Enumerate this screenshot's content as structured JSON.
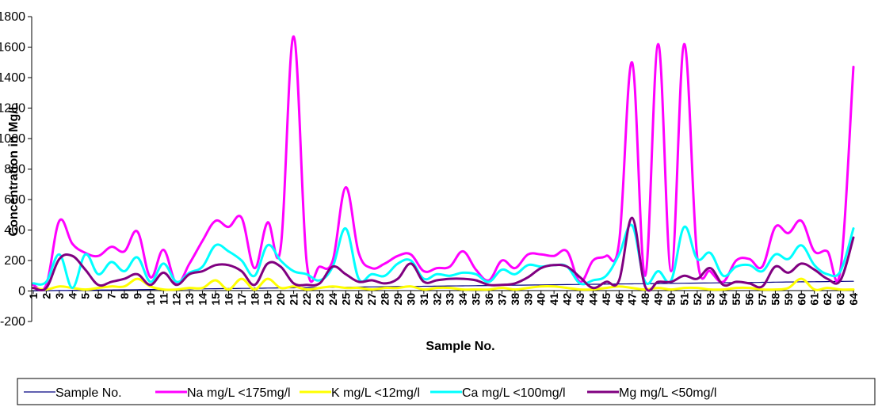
{
  "chart_data": {
    "type": "line",
    "title": "",
    "xlabel": "Sample No.",
    "ylabel": "Concentration in Mg/L",
    "ylim": [
      -200,
      1800
    ],
    "yticks": [
      -200,
      0,
      200,
      400,
      600,
      800,
      1000,
      1200,
      1400,
      1600,
      1800
    ],
    "grid": false,
    "legend_position": "bottom",
    "categories": [
      "1",
      "2",
      "3",
      "4",
      "5",
      "6",
      "7",
      "8",
      "9",
      "10",
      "11",
      "12",
      "13",
      "14",
      "15",
      "16",
      "17",
      "18",
      "19",
      "20",
      "21",
      "22",
      "23",
      "24",
      "25",
      "26",
      "27",
      "28",
      "29",
      "30",
      "31",
      "32",
      "33",
      "34",
      "35",
      "36",
      "37",
      "38",
      "39",
      "40",
      "41",
      "42",
      "43",
      "44",
      "45",
      "46",
      "47",
      "48",
      "49",
      "50",
      "51",
      "52",
      "53",
      "54",
      "55",
      "56",
      "57",
      "58",
      "59",
      "60",
      "61",
      "62",
      "63",
      "64"
    ],
    "series": [
      {
        "name": "Sample No.",
        "color": "#000080",
        "width": 1.2,
        "values": [
          1,
          2,
          3,
          4,
          5,
          6,
          7,
          8,
          9,
          10,
          11,
          12,
          13,
          14,
          15,
          16,
          17,
          18,
          19,
          20,
          21,
          22,
          23,
          24,
          25,
          26,
          27,
          28,
          29,
          30,
          31,
          32,
          33,
          34,
          35,
          36,
          37,
          38,
          39,
          40,
          41,
          42,
          43,
          44,
          45,
          46,
          47,
          48,
          49,
          50,
          51,
          52,
          53,
          54,
          55,
          56,
          57,
          58,
          59,
          60,
          61,
          62,
          63,
          64
        ]
      },
      {
        "name": "Na mg/L <175mg/l",
        "color": "#FF00FF",
        "width": 3,
        "values": [
          40,
          40,
          460,
          310,
          250,
          230,
          290,
          260,
          390,
          90,
          270,
          50,
          180,
          330,
          460,
          420,
          480,
          150,
          450,
          280,
          1670,
          190,
          160,
          200,
          680,
          250,
          150,
          180,
          230,
          240,
          130,
          150,
          160,
          260,
          140,
          70,
          200,
          150,
          240,
          240,
          230,
          260,
          60,
          200,
          230,
          320,
          1500,
          100,
          1620,
          130,
          1620,
          220,
          130,
          60,
          200,
          210,
          160,
          420,
          380,
          460,
          260,
          260,
          140,
          1470
        ]
      },
      {
        "name": "K mg/L <12mg/l",
        "color": "#FFFF00",
        "width": 3,
        "values": [
          20,
          10,
          30,
          20,
          10,
          20,
          30,
          30,
          80,
          30,
          10,
          10,
          20,
          20,
          70,
          10,
          80,
          10,
          80,
          20,
          30,
          10,
          20,
          30,
          20,
          20,
          10,
          20,
          20,
          30,
          10,
          20,
          20,
          10,
          10,
          10,
          20,
          10,
          20,
          30,
          30,
          20,
          10,
          10,
          20,
          30,
          20,
          10,
          20,
          10,
          20,
          20,
          10,
          10,
          20,
          20,
          10,
          10,
          20,
          80,
          10,
          20,
          10,
          10
        ]
      },
      {
        "name": "Ca mg/L <100mg/l",
        "color": "#00FFFF",
        "width": 3,
        "values": [
          50,
          60,
          240,
          20,
          240,
          110,
          190,
          130,
          220,
          60,
          180,
          60,
          120,
          160,
          300,
          260,
          200,
          100,
          300,
          200,
          130,
          110,
          70,
          160,
          410,
          80,
          110,
          100,
          180,
          200,
          80,
          110,
          100,
          120,
          110,
          60,
          140,
          110,
          170,
          160,
          170,
          160,
          50,
          70,
          100,
          240,
          430,
          60,
          130,
          70,
          420,
          210,
          250,
          100,
          160,
          170,
          130,
          240,
          210,
          300,
          170,
          110,
          130,
          410
        ]
      },
      {
        "name": "Mg mg/L <50mg/l",
        "color": "#800080",
        "width": 3,
        "values": [
          20,
          20,
          210,
          230,
          140,
          40,
          60,
          80,
          110,
          40,
          120,
          40,
          110,
          130,
          170,
          170,
          130,
          40,
          180,
          160,
          50,
          40,
          50,
          160,
          110,
          60,
          70,
          50,
          80,
          180,
          60,
          70,
          80,
          80,
          70,
          40,
          40,
          50,
          90,
          150,
          170,
          160,
          90,
          20,
          60,
          70,
          480,
          30,
          60,
          60,
          100,
          80,
          150,
          40,
          60,
          50,
          30,
          160,
          120,
          180,
          140,
          80,
          70,
          350
        ]
      }
    ]
  }
}
